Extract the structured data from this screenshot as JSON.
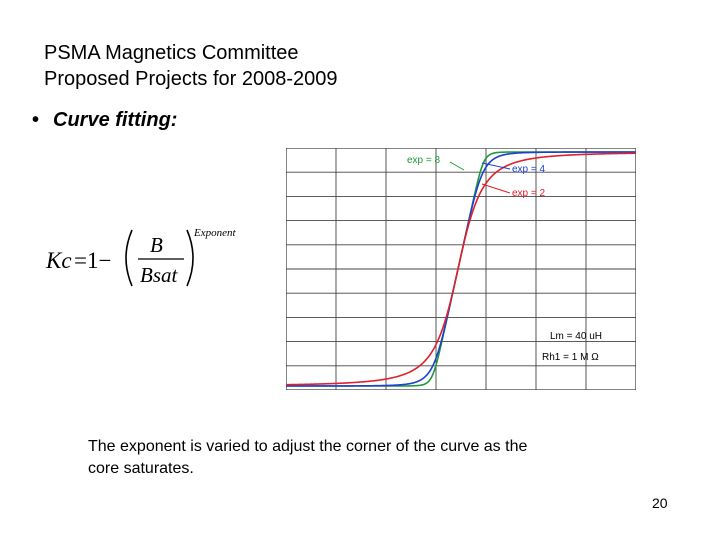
{
  "slide": {
    "title_line1": "PSMA Magnetics Committee",
    "title_line2": "Proposed Projects for 2008-2009",
    "bullet_marker": "•",
    "bullet_text": "Curve fitting:",
    "caption_line1": "The exponent is varied to adjust the corner of the curve as the",
    "caption_line2": "core saturates.",
    "page_number": "20"
  },
  "formula": {
    "lhs": "Kc",
    "equals_one_minus": "=1−",
    "numerator": "B",
    "denominator": "Bsat",
    "exponent": "Exponent"
  },
  "chart_data": {
    "type": "line",
    "title": "",
    "xlabel": "",
    "ylabel": "",
    "grid": true,
    "grid_columns": 7,
    "grid_rows": 10,
    "series": [
      {
        "name": "exp = 8",
        "color": "#1f9a3a",
        "exponent": 8
      },
      {
        "name": "exp = 4",
        "color": "#1f3fd1",
        "exponent": 4
      },
      {
        "name": "exp = 2",
        "color": "#e0202a",
        "exponent": 2
      }
    ],
    "annotations": [
      "Lm = 40 uH",
      "Rh1 = 1 M Ω"
    ]
  }
}
